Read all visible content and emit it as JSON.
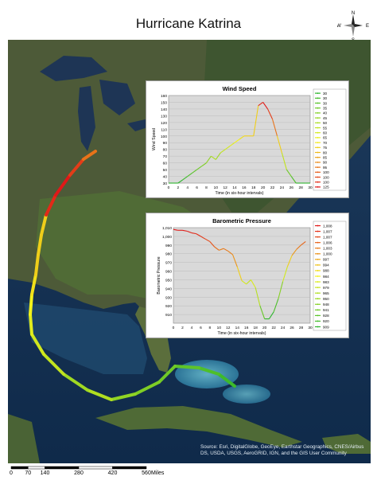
{
  "map": {
    "title": "Hurricane Katrina",
    "compass": {
      "n": "N",
      "s": "S",
      "e": "E",
      "w": "W"
    },
    "credits": "Source: Esri, DigitalGlobe, GeoEye, Earthstar Geographics, CNES/Airbus DS, USDA, USGS, AeroGRID, IGN, and the GIS User Community",
    "scale": {
      "ticks": [
        "0",
        "70",
        "140",
        "280",
        "420",
        "560"
      ],
      "unit": "Miles"
    },
    "track_legend_note": "",
    "colors": {
      "low": "#2db52d",
      "mid": "#f2f21a",
      "high": "#e01818"
    }
  },
  "chart_data": [
    {
      "type": "line",
      "title": "Wind Speed",
      "xlabel": "Time (in six-hour intervals)",
      "ylabel": "Wind Speed",
      "xlim": [
        0,
        30
      ],
      "ylim": [
        30,
        160
      ],
      "xticks": [
        "0",
        "2",
        "4",
        "6",
        "8",
        "10",
        "12",
        "14",
        "16",
        "18",
        "20",
        "22",
        "24",
        "26",
        "28",
        "30"
      ],
      "yticks": [
        "30",
        "40",
        "50",
        "60",
        "70",
        "80",
        "90",
        "100",
        "110",
        "120",
        "130",
        "140",
        "150",
        "160"
      ],
      "x": [
        0,
        1,
        2,
        3,
        4,
        5,
        6,
        7,
        8,
        9,
        10,
        11,
        12,
        13,
        14,
        15,
        16,
        17,
        18,
        19,
        20,
        21,
        22,
        23,
        24,
        25,
        26,
        27,
        28,
        29,
        30
      ],
      "values": [
        30,
        30,
        30,
        35,
        40,
        45,
        50,
        55,
        60,
        70,
        65,
        75,
        80,
        85,
        90,
        95,
        100,
        100,
        100,
        145,
        150,
        140,
        125,
        100,
        75,
        50,
        40,
        30,
        30,
        30,
        30
      ],
      "legend": [
        "30",
        "30",
        "30",
        "35",
        "40",
        "45",
        "50",
        "55",
        "60",
        "65",
        "70",
        "75",
        "80",
        "85",
        "90",
        "95",
        "100",
        "100",
        "100",
        "125"
      ],
      "grid": true,
      "legend_placement": "right"
    },
    {
      "type": "line",
      "title": "Barometric Pressure",
      "xlabel": "Time (in six-hour intervals)",
      "ylabel": "Barometric Pressure",
      "xlim": [
        0,
        30
      ],
      "ylim": [
        900,
        1010
      ],
      "xticks": [
        "0",
        "2",
        "4",
        "6",
        "8",
        "10",
        "12",
        "14",
        "16",
        "18",
        "20",
        "22",
        "24",
        "26",
        "28",
        "30"
      ],
      "yticks": [
        "910",
        "920",
        "930",
        "940",
        "950",
        "960",
        "970",
        "980",
        "990",
        "1,000",
        "1,010"
      ],
      "x": [
        0,
        1,
        2,
        3,
        4,
        5,
        6,
        7,
        8,
        9,
        10,
        11,
        12,
        13,
        14,
        15,
        16,
        17,
        18,
        19,
        20,
        21,
        22,
        23,
        24,
        25,
        26,
        27,
        28,
        29
      ],
      "values": [
        1008,
        1007,
        1007,
        1006,
        1004,
        1003,
        1000,
        997,
        994,
        988,
        984,
        986,
        983,
        979,
        965,
        949,
        945,
        950,
        941,
        920,
        905,
        905,
        913,
        928,
        948,
        965,
        978,
        985,
        990,
        994
      ],
      "legend": [
        "1,008",
        "1,007",
        "1,007",
        "1,006",
        "1,003",
        "1,000",
        "997",
        "994",
        "988",
        "984",
        "983",
        "979",
        "965",
        "950",
        "948",
        "941",
        "928",
        "920",
        "909"
      ],
      "grid": true,
      "legend_placement": "right"
    }
  ]
}
